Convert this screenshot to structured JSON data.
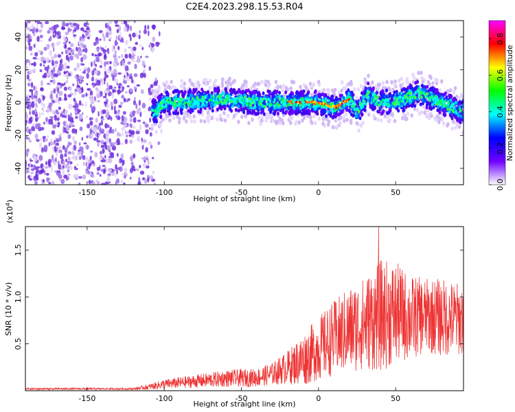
{
  "chart_data": [
    {
      "type": "heatmap",
      "title": "C2E4.2023.298.15.53.R04",
      "xlabel": "Height of straight line (km)",
      "ylabel": "Frequency (Hz)",
      "xlim": [
        -190,
        94
      ],
      "ylim": [
        -50,
        50
      ],
      "xticks": [
        -150,
        -100,
        -50,
        0,
        50
      ],
      "yticks": [
        -40,
        -20,
        0,
        20,
        40
      ],
      "colorbar": {
        "label": "Normalized spectral amplitude",
        "range": [
          0.0,
          0.9
        ],
        "ticks": [
          0.0,
          0.2,
          0.4,
          0.6,
          0.8
        ],
        "colormap": [
          "#ff00ff",
          "#ff0000",
          "#ffff00",
          "#00ff00",
          "#00ffff",
          "#0000ff",
          "#6f00ff",
          "#ffffff"
        ]
      },
      "band_center_hz": [
        [
          -190,
          0
        ],
        [
          -105,
          -5
        ],
        [
          -100,
          0
        ],
        [
          -80,
          1
        ],
        [
          -60,
          2
        ],
        [
          -40,
          0
        ],
        [
          -20,
          0
        ],
        [
          0,
          0
        ],
        [
          10,
          -3
        ],
        [
          20,
          2
        ],
        [
          25,
          -6
        ],
        [
          32,
          5
        ],
        [
          40,
          0
        ],
        [
          55,
          2
        ],
        [
          65,
          6
        ],
        [
          80,
          0
        ],
        [
          94,
          -6
        ]
      ],
      "noise_region_km": [
        -190,
        -110
      ],
      "colors": {
        "frame": "#000000",
        "noise": "#6c2bd9"
      }
    },
    {
      "type": "line",
      "title": "",
      "xlabel": "Height of straight line (km)",
      "ylabel": "SNR (10 * v/v)",
      "y_scale_label": "(x10",
      "y_scale_exponent": "4",
      "y_scale_close": ")",
      "xlim": [
        -190,
        94
      ],
      "ylim": [
        0,
        1.75
      ],
      "xticks": [
        -150,
        -100,
        -50,
        0,
        50
      ],
      "yticks": [
        0.5,
        1.0,
        1.5
      ],
      "ytick_labels": [
        "0.5",
        "1.0",
        "1.5"
      ],
      "envelope": {
        "x": [
          -190,
          -120,
          -110,
          -100,
          -80,
          -60,
          -40,
          -30,
          -20,
          -10,
          0,
          10,
          20,
          30,
          40,
          50,
          60,
          70,
          80,
          94
        ],
        "mean": [
          0.02,
          0.02,
          0.04,
          0.07,
          0.1,
          0.13,
          0.14,
          0.18,
          0.25,
          0.33,
          0.45,
          0.56,
          0.65,
          0.72,
          0.8,
          0.83,
          0.78,
          0.8,
          0.78,
          0.76
        ],
        "amp": [
          0.01,
          0.01,
          0.03,
          0.05,
          0.07,
          0.09,
          0.1,
          0.12,
          0.18,
          0.28,
          0.34,
          0.4,
          0.46,
          0.5,
          0.6,
          0.55,
          0.45,
          0.4,
          0.42,
          0.38
        ]
      },
      "peak": {
        "x": 39,
        "y": 1.75
      },
      "color": "#ee3333"
    }
  ]
}
